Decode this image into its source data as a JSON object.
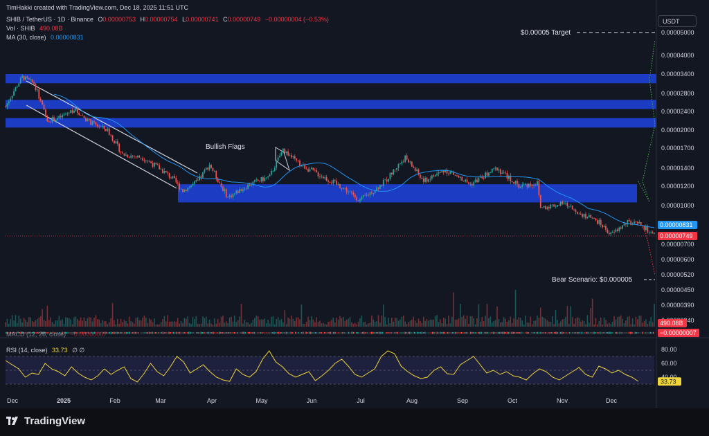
{
  "header": {
    "credit": "TimHakki created with TradingView.com, Dec 18, 2025 11:51 UTC",
    "symbol": "SHIB / TetherUS · 1D · Binance",
    "ohlc": {
      "o_label": "O",
      "o": "0.00000753",
      "h_label": "H",
      "h": "0.00000754",
      "l_label": "L",
      "l": "0.00000741",
      "c_label": "C",
      "c": "0.00000749",
      "change": "−0.00000004 (−0.53%)"
    },
    "vol_label": "Vol · SHIB",
    "vol_value": "490.08B",
    "ma_label": "MA (30, close)",
    "ma_value": "0.00000831"
  },
  "currency_button": "USDT",
  "chart_data": {
    "type": "candlestick",
    "x_range": [
      "2024-11-25",
      "2025-12-18"
    ],
    "x_tick_labels": [
      "Dec",
      "2025",
      "Feb",
      "Mar",
      "Apr",
      "May",
      "Jun",
      "Jul",
      "Aug",
      "Sep",
      "Oct",
      "Nov",
      "Dec"
    ],
    "y_scale": "log",
    "y_range": [
      3.2e-06,
      5.6e-06
    ],
    "y_tick_labels": [
      "0.00005000",
      "0.00004000",
      "0.00003400",
      "0.00002800",
      "0.00002400",
      "0.00002000",
      "0.00001700",
      "0.00001400",
      "0.00001200",
      "0.00001000",
      "0.00000700",
      "0.00000600",
      "0.00000520",
      "0.00000450",
      "0.00000390",
      "0.00000340"
    ],
    "price_path": [
      [
        "2024-11-25",
        2.5e-05
      ],
      [
        "2024-12-05",
        3.3e-05
      ],
      [
        "2024-12-12",
        3.1e-05
      ],
      [
        "2024-12-20",
        2.2e-05
      ],
      [
        "2024-12-27",
        2.25e-05
      ],
      [
        "2025-01-05",
        2.45e-05
      ],
      [
        "2025-01-15",
        2.15e-05
      ],
      [
        "2025-01-25",
        2e-05
      ],
      [
        "2025-02-03",
        1.6e-05
      ],
      [
        "2025-02-15",
        1.55e-05
      ],
      [
        "2025-02-25",
        1.4e-05
      ],
      [
        "2025-03-05",
        1.28e-05
      ],
      [
        "2025-03-11",
        1.15e-05
      ],
      [
        "2025-03-20",
        1.25e-05
      ],
      [
        "2025-03-27",
        1.45e-05
      ],
      [
        "2025-04-07",
        1.08e-05
      ],
      [
        "2025-04-20",
        1.22e-05
      ],
      [
        "2025-05-02",
        1.3e-05
      ],
      [
        "2025-05-10",
        1.68e-05
      ],
      [
        "2025-05-20",
        1.45e-05
      ],
      [
        "2025-06-01",
        1.32e-05
      ],
      [
        "2025-06-15",
        1.18e-05
      ],
      [
        "2025-06-25",
        1.05e-05
      ],
      [
        "2025-07-10",
        1.25e-05
      ],
      [
        "2025-07-22",
        1.55e-05
      ],
      [
        "2025-08-02",
        1.25e-05
      ],
      [
        "2025-08-15",
        1.38e-05
      ],
      [
        "2025-08-30",
        1.22e-05
      ],
      [
        "2025-09-15",
        1.4e-05
      ],
      [
        "2025-09-28",
        1.2e-05
      ],
      [
        "2025-10-09",
        1.23e-05
      ],
      [
        "2025-10-11",
        9.8e-06
      ],
      [
        "2025-10-25",
        1.02e-05
      ],
      [
        "2025-11-05",
        9.2e-06
      ],
      [
        "2025-11-15",
        8.5e-06
      ],
      [
        "2025-11-22",
        7.6e-06
      ],
      [
        "2025-12-02",
        8.5e-06
      ],
      [
        "2025-12-10",
        8.3e-06
      ],
      [
        "2025-12-18",
        7.49e-06
      ]
    ],
    "volume_panel": {
      "label": "Vol · SHIB",
      "last_value": "490.08B"
    },
    "ma": {
      "label": "MA (30, close)",
      "last_value": "0.00000831"
    },
    "price_labels": {
      "ma": "0.00000831",
      "close": "0.00000749"
    },
    "zones": [
      {
        "from": 3.1e-05,
        "to": 3.4e-05
      },
      {
        "from": 2.45e-05,
        "to": 2.65e-05
      },
      {
        "from": 2.05e-05,
        "to": 2.25e-05
      },
      {
        "from": 1.03e-05,
        "to": 1.22e-05
      }
    ],
    "annotations": {
      "bullish_flags": "Bullish Flags",
      "target": "$0.00005 Target",
      "bear": "Bear Scenario: $0.000005"
    },
    "macd": {
      "label": "MACD (12, 26, close)",
      "last_value": "−0.00000007"
    },
    "rsi": {
      "label": "RSI (14, close)",
      "value": "33.73",
      "extra": "∅ ∅",
      "levels": [
        "80.00",
        "60.00",
        "40.00"
      ],
      "band": [
        30,
        70
      ],
      "ylim": [
        25,
        85
      ],
      "series": [
        64,
        58,
        52,
        40,
        46,
        44,
        60,
        52,
        48,
        42,
        55,
        46,
        40,
        36,
        42,
        52,
        44,
        50,
        55,
        38,
        33,
        45,
        60,
        48,
        42,
        55,
        70,
        62,
        46,
        52,
        58,
        48,
        40,
        36,
        34,
        52,
        44,
        40,
        48,
        66,
        78,
        62,
        55,
        45,
        40,
        44,
        48,
        35,
        42,
        50,
        60,
        66,
        56,
        44,
        40,
        46,
        52,
        70,
        78,
        74,
        56,
        48,
        42,
        38,
        40,
        50,
        55,
        45,
        44,
        58,
        64,
        70,
        58,
        46,
        50,
        44,
        48,
        42,
        40,
        36,
        45,
        52,
        48,
        40,
        36,
        42,
        48,
        54,
        44,
        40,
        56,
        52,
        46,
        50,
        44,
        40,
        34
      ]
    }
  }
}
